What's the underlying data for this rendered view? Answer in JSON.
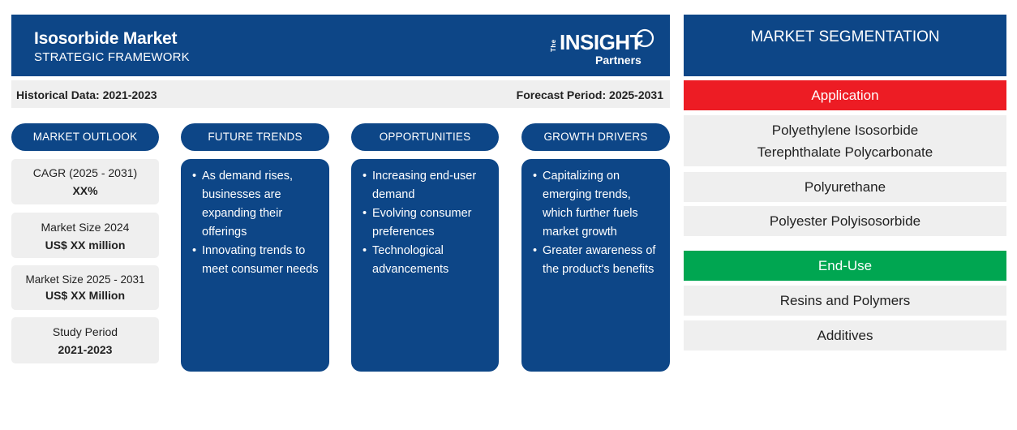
{
  "header": {
    "title": "Isosorbide Market",
    "subtitle": "STRATEGIC FRAMEWORK",
    "logo": {
      "the": "The",
      "insight": "INSIGHT",
      "partners": "Partners"
    }
  },
  "databar": {
    "historical": "Historical Data: 2021-2023",
    "forecast": "Forecast Period: 2025-2031"
  },
  "columns": {
    "outlook": "MARKET OUTLOOK",
    "trends": "FUTURE TRENDS",
    "opportunities": "OPPORTUNITIES",
    "drivers": "GROWTH DRIVERS"
  },
  "outlook": [
    {
      "label": "CAGR (2025 - 2031)",
      "value": "XX%"
    },
    {
      "label": "Market Size 2024",
      "value": "US$ XX million"
    },
    {
      "label": "Market Size 2025 - 2031",
      "value": "US$ XX Million"
    },
    {
      "label": "Study Period",
      "value": "2021-2023"
    }
  ],
  "trends": [
    "As demand rises, businesses are expanding their offerings",
    "Innovating trends to meet consumer needs"
  ],
  "opportunities": [
    "Increasing end-user demand",
    "Evolving consumer preferences",
    "Technological advancements"
  ],
  "drivers": [
    "Capitalizing on emerging trends, which further fuels market growth",
    "Greater awareness of the product's benefits"
  ],
  "segmentation": {
    "title": "MARKET SEGMENTATION",
    "application": {
      "label": "Application",
      "items": [
        "Polyethylene Isosorbide Terephthalate Polycarbonate",
        "Polyurethane",
        "Polyester Polyisosorbide"
      ]
    },
    "enduse": {
      "label": "End-Use",
      "items": [
        "Resins and Polymers",
        "Additives"
      ]
    }
  },
  "colors": {
    "navy": "#0d4687",
    "red": "#ed1c24",
    "green": "#00a651",
    "grey": "#efefef"
  }
}
